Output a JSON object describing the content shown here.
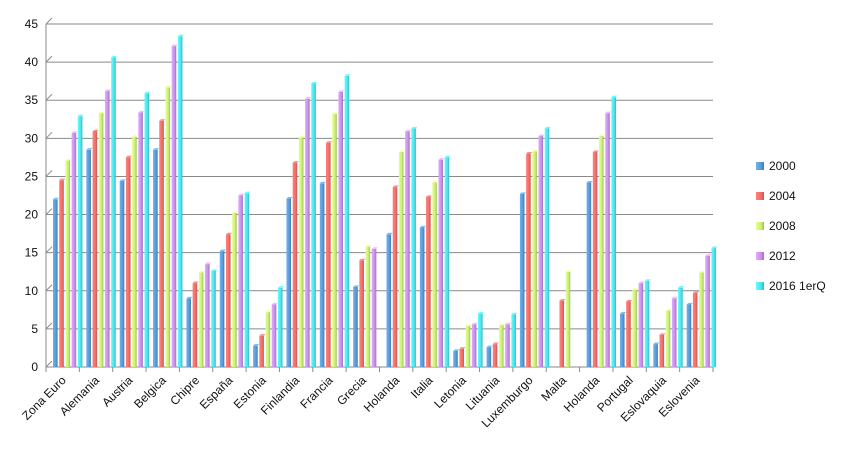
{
  "chart_data": {
    "type": "bar",
    "title": "",
    "xlabel": "",
    "ylabel": "",
    "ylim": [
      0,
      45
    ],
    "yticks": [
      0,
      5,
      10,
      15,
      20,
      25,
      30,
      35,
      40,
      45
    ],
    "grid": true,
    "legend_position": "right",
    "categories": [
      "Zona Euro",
      "Alemania",
      "Austria",
      "Belgica",
      "Chipre",
      "España",
      "Estonia",
      "Finlandia",
      "Francia",
      "Grecia",
      "Holanda",
      "Italia",
      "Letonia",
      "Lituania",
      "Luxemburgo",
      "Malta",
      "Holanda",
      "Portugal",
      "Eslovaquia",
      "Eslovenia"
    ],
    "series": [
      {
        "name": "2000",
        "color": "#5b9bd5",
        "values": [
          22.0,
          28.5,
          24.4,
          28.5,
          9.0,
          15.2,
          2.8,
          22.1,
          24.1,
          10.5,
          17.4,
          18.3,
          2.1,
          2.6,
          22.7,
          0,
          24.2,
          7.0,
          3.0,
          8.2
        ]
      },
      {
        "name": "2004",
        "color": "#f2706a",
        "values": [
          24.5,
          30.9,
          27.5,
          32.3,
          11.0,
          17.4,
          4.1,
          26.8,
          29.4,
          14.0,
          23.6,
          22.3,
          2.4,
          3.0,
          28.0,
          8.7,
          28.2,
          8.6,
          4.2,
          9.7
        ]
      },
      {
        "name": "2008",
        "color": "#c9f07a",
        "values": [
          27.1,
          33.3,
          30.2,
          36.7,
          12.4,
          20.2,
          7.2,
          30.1,
          33.2,
          15.8,
          28.2,
          24.2,
          5.4,
          5.5,
          28.3,
          12.5,
          30.3,
          10.1,
          7.4,
          12.4
        ]
      },
      {
        "name": "2012",
        "color": "#c792ea",
        "values": [
          30.7,
          36.2,
          33.4,
          42.1,
          13.5,
          22.5,
          8.2,
          35.2,
          36.1,
          15.5,
          30.9,
          27.2,
          5.6,
          5.6,
          30.3,
          0,
          33.3,
          11.0,
          9.0,
          14.6
        ]
      },
      {
        "name": "2016 1erQ",
        "color": "#4fe3ee",
        "values": [
          32.9,
          40.6,
          35.9,
          43.4,
          12.6,
          22.8,
          10.4,
          37.2,
          38.2,
          0,
          31.3,
          27.5,
          7.0,
          6.9,
          31.3,
          0,
          35.4,
          11.3,
          10.4,
          15.6
        ]
      }
    ]
  }
}
